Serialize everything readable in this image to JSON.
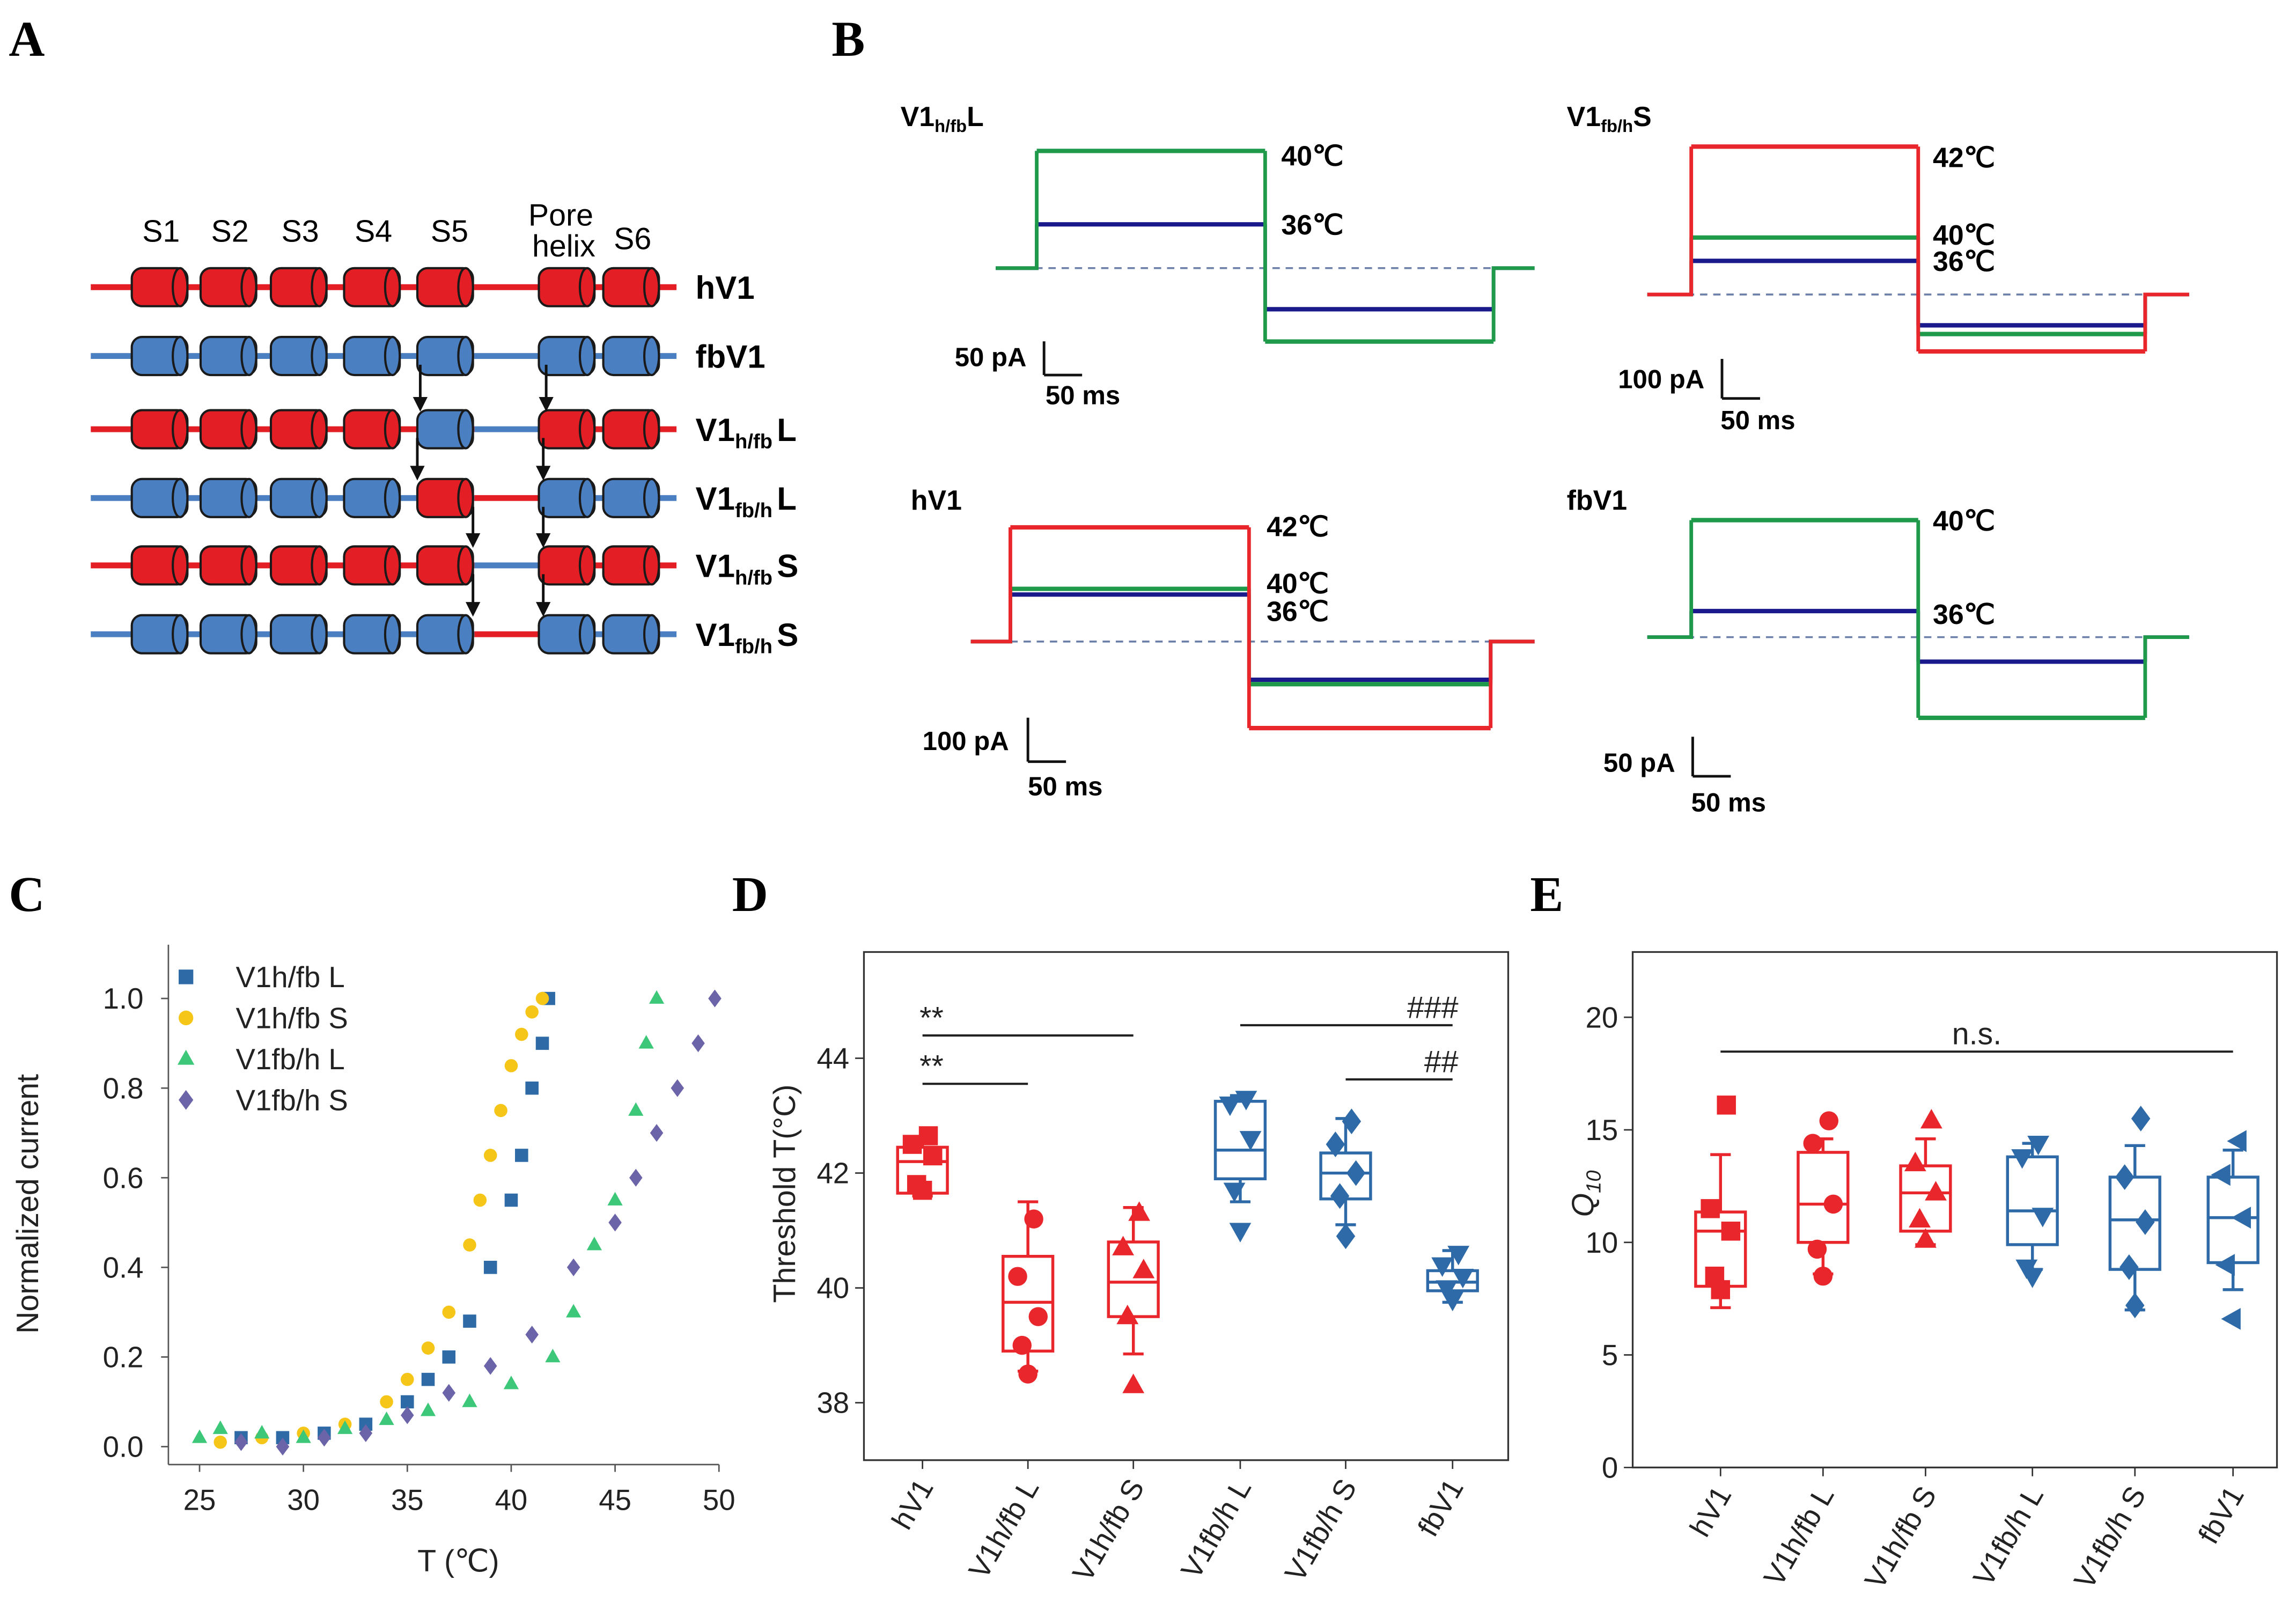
{
  "panel_labels": [
    "A",
    "B",
    "C",
    "D",
    "E"
  ],
  "diagram": {
    "segment_labels": [
      "S1",
      "S2",
      "S3",
      "S4",
      "S5",
      "S6"
    ],
    "pore_label": [
      "Pore",
      "helix"
    ],
    "rows": [
      {
        "name": "hV1",
        "line": "#e31e24",
        "linker": "#e31e24",
        "cylinders": [
          "#e31e24",
          "#e31e24",
          "#e31e24",
          "#e31e24",
          "#e31e24",
          "#e31e24",
          "#e31e24"
        ]
      },
      {
        "name": "fbV1",
        "line": "#4a7fc1",
        "linker": "#4a7fc1",
        "cylinders": [
          "#4a7fc1",
          "#4a7fc1",
          "#4a7fc1",
          "#4a7fc1",
          "#4a7fc1",
          "#4a7fc1",
          "#4a7fc1"
        ]
      },
      {
        "name": "V1",
        "sub": "h/fb",
        "suffix": "L",
        "line": "#e31e24",
        "linker": "#4a7fc1",
        "cylinders": [
          "#e31e24",
          "#e31e24",
          "#e31e24",
          "#e31e24",
          "#4a7fc1",
          "#e31e24",
          "#e31e24"
        ]
      },
      {
        "name": "V1",
        "sub": "fb/h",
        "suffix": "L",
        "line": "#4a7fc1",
        "linker": "#e31e24",
        "cylinders": [
          "#4a7fc1",
          "#4a7fc1",
          "#4a7fc1",
          "#4a7fc1",
          "#e31e24",
          "#4a7fc1",
          "#4a7fc1"
        ]
      },
      {
        "name": "V1",
        "sub": "h/fb",
        "suffix": "S",
        "line": "#e31e24",
        "linker": "#4a7fc1",
        "cylinders": [
          "#e31e24",
          "#e31e24",
          "#e31e24",
          "#e31e24",
          "#e31e24",
          "#e31e24",
          "#e31e24"
        ]
      },
      {
        "name": "V1",
        "sub": "fb/h",
        "suffix": "S",
        "line": "#4a7fc1",
        "linker": "#e31e24",
        "cylinders": [
          "#4a7fc1",
          "#4a7fc1",
          "#4a7fc1",
          "#4a7fc1",
          "#4a7fc1",
          "#4a7fc1",
          "#4a7fc1"
        ]
      }
    ]
  },
  "chart_data": [
    {
      "type": "trace",
      "title": "V1",
      "title_sub": "h/fb",
      "title_suffix": "L",
      "series": [
        {
          "name": "40℃",
          "color": "#1e9a4a",
          "values": [
            174,
            -109
          ]
        },
        {
          "name": "36℃",
          "color": "#1a1a8c",
          "values": [
            65,
            -61
          ]
        }
      ],
      "current_scale": {
        "value": 50,
        "label": "50 pA"
      },
      "time_scale": {
        "value": 50,
        "label": "50 ms"
      }
    },
    {
      "type": "trace",
      "title": "V1",
      "title_sub": "fb/h",
      "title_suffix": "S",
      "series": [
        {
          "name": "42℃",
          "color": "#e8262b",
          "values": [
            374,
            -144
          ]
        },
        {
          "name": "40℃",
          "color": "#1e9a4a",
          "values": [
            144,
            -100
          ]
        },
        {
          "name": "36℃",
          "color": "#1a1a8c",
          "values": [
            85,
            -78
          ]
        }
      ],
      "current_scale": {
        "value": 100,
        "label": "100 pA"
      },
      "time_scale": {
        "value": 50,
        "label": "50 ms"
      }
    },
    {
      "type": "trace",
      "title": "hV1",
      "series": [
        {
          "name": "42℃",
          "color": "#e8262b",
          "values": [
            260,
            -197
          ]
        },
        {
          "name": "40℃",
          "color": "#1e9a4a",
          "values": [
            120,
            -97
          ]
        },
        {
          "name": "36℃",
          "color": "#1a1a8c",
          "values": [
            107,
            -87
          ]
        }
      ],
      "current_scale": {
        "value": 100,
        "label": "100 pA"
      },
      "time_scale": {
        "value": 50,
        "label": "50 ms"
      }
    },
    {
      "type": "trace",
      "title": "fbV1",
      "series": [
        {
          "name": "40℃",
          "color": "#1e9a4a",
          "values": [
            148,
            -102
          ]
        },
        {
          "name": "36℃",
          "color": "#1a1a8c",
          "values": [
            33,
            -31
          ]
        }
      ],
      "current_scale": {
        "value": 50,
        "label": "50 pA"
      },
      "time_scale": {
        "value": 50,
        "label": "50 ms"
      }
    },
    {
      "type": "scatter",
      "xlabel": "T (℃)",
      "ylabel": "Normalized current",
      "legend": "upper left",
      "xlim": [
        23.5,
        50
      ],
      "ylim": [
        -0.04,
        1.12
      ],
      "xticks": [
        25,
        30,
        35,
        40,
        45,
        50
      ],
      "yticks": [
        {
          "value": 0,
          "label": "0.0"
        },
        {
          "value": 0.2,
          "label": "0.2"
        },
        {
          "value": 0.4,
          "label": "0.4"
        },
        {
          "value": 0.6,
          "label": "0.6"
        },
        {
          "value": 0.8,
          "label": "0.8"
        },
        {
          "value": 1,
          "label": "1.0"
        }
      ],
      "series": [
        {
          "name": "V1h/fb L",
          "color": "#2e6aa6",
          "marker": "square",
          "x": [
            27,
            29,
            31,
            33,
            35,
            36,
            37,
            38,
            39,
            40,
            40.5,
            41,
            41.5,
            41.8
          ],
          "values": [
            0.02,
            0.02,
            0.03,
            0.05,
            0.1,
            0.15,
            0.2,
            0.28,
            0.4,
            0.55,
            0.65,
            0.8,
            0.9,
            1.0
          ]
        },
        {
          "name": "V1h/fb S",
          "color": "#f5c518",
          "marker": "circle",
          "x": [
            26,
            28,
            30,
            32,
            34,
            35,
            36,
            37,
            38,
            38.5,
            39,
            39.5,
            40,
            40.5,
            41,
            41.5
          ],
          "values": [
            0.01,
            0.02,
            0.03,
            0.05,
            0.1,
            0.15,
            0.22,
            0.3,
            0.45,
            0.55,
            0.65,
            0.75,
            0.85,
            0.92,
            0.97,
            1.0
          ]
        },
        {
          "name": "V1fb/h L",
          "color": "#3cc878",
          "marker": "tri-up",
          "x": [
            25,
            26,
            28,
            30,
            32,
            34,
            36,
            38,
            40,
            42,
            43,
            44,
            45,
            46,
            46.5,
            47
          ],
          "values": [
            0.02,
            0.04,
            0.03,
            0.02,
            0.04,
            0.06,
            0.08,
            0.1,
            0.14,
            0.2,
            0.3,
            0.45,
            0.55,
            0.75,
            0.9,
            1.0
          ]
        },
        {
          "name": "V1fb/h S",
          "color": "#6b64a8",
          "marker": "diamond",
          "x": [
            27,
            29,
            31,
            33,
            35,
            37,
            39,
            41,
            43,
            45,
            46,
            47,
            48,
            49,
            49.8
          ],
          "values": [
            0.01,
            0.0,
            0.02,
            0.03,
            0.07,
            0.12,
            0.18,
            0.25,
            0.4,
            0.5,
            0.6,
            0.7,
            0.8,
            0.9,
            1.0
          ]
        }
      ]
    },
    {
      "type": "box",
      "ylabel": "Threshold T(°C)",
      "ylim": [
        37,
        45.85
      ],
      "yticks": [
        38,
        40,
        42,
        44
      ],
      "categories": [
        "hV1",
        "V1h/fb L",
        "V1h/fb S",
        "V1fb/h L",
        "V1fb/h S",
        "fbV1"
      ],
      "colors": [
        "#e8262b",
        "#e8262b",
        "#e8262b",
        "#2d6aa7",
        "#2d6aa7",
        "#2d6aa7"
      ],
      "markers": [
        "square",
        "circle",
        "tri-up",
        "tri-down",
        "diamond",
        "tri-down"
      ],
      "annotations": [
        "**",
        "**",
        "###",
        "##"
      ],
      "boxes": [
        {
          "q1": 41.65,
          "median": 42.2,
          "q3": 42.45,
          "whisker_low": 41.6,
          "whisker_high": 42.6,
          "points": [
            42.65,
            42.5,
            42.3,
            41.8,
            41.7
          ]
        },
        {
          "q1": 38.9,
          "median": 39.75,
          "q3": 40.55,
          "whisker_low": 38.55,
          "whisker_high": 41.5,
          "points": [
            41.2,
            40.2,
            39.5,
            39.0,
            38.5
          ]
        },
        {
          "q1": 39.5,
          "median": 40.1,
          "q3": 40.8,
          "whisker_low": 38.85,
          "whisker_high": 41.4,
          "points": [
            41.3,
            40.7,
            40.3,
            39.5,
            38.3
          ]
        },
        {
          "q1": 41.9,
          "median": 42.4,
          "q3": 43.25,
          "whisker_low": 41.5,
          "whisker_high": 43.35,
          "points": [
            43.3,
            43.2,
            42.6,
            41.7,
            41.0
          ]
        },
        {
          "q1": 41.55,
          "median": 42.0,
          "q3": 42.35,
          "whisker_low": 41.1,
          "whisker_high": 42.95,
          "points": [
            42.9,
            42.5,
            42.0,
            41.6,
            40.9
          ]
        },
        {
          "q1": 39.95,
          "median": 40.1,
          "q3": 40.3,
          "whisker_low": 39.75,
          "whisker_high": 40.65,
          "points": [
            40.6,
            40.4,
            40.2,
            40.0,
            39.8
          ]
        }
      ]
    },
    {
      "type": "box",
      "ylabel": "Q",
      "ylabel_sub": "10",
      "ylim": [
        0,
        22.9
      ],
      "yticks": [
        0,
        5,
        10,
        15,
        20
      ],
      "categories": [
        "hV1",
        "V1h/fb L",
        "V1h/fb S",
        "V1fb/h L",
        "V1fb/h S",
        "fbV1"
      ],
      "colors": [
        "#e8262b",
        "#e8262b",
        "#e8262b",
        "#2d6aa7",
        "#2d6aa7",
        "#2d6aa7"
      ],
      "markers": [
        "square",
        "circle",
        "tri-up",
        "tri-down",
        "diamond",
        "tri-left"
      ],
      "annotations": [
        "n.s."
      ],
      "boxes": [
        {
          "q1": 8.05,
          "median": 10.5,
          "q3": 11.35,
          "whisker_low": 7.1,
          "whisker_high": 13.9,
          "points": [
            16.1,
            11.5,
            10.5,
            8.5,
            7.9
          ]
        },
        {
          "q1": 10.0,
          "median": 11.7,
          "q3": 14.0,
          "whisker_low": 8.6,
          "whisker_high": 14.6,
          "points": [
            15.4,
            14.4,
            11.7,
            9.7,
            8.5
          ]
        },
        {
          "q1": 10.5,
          "median": 12.2,
          "q3": 13.4,
          "whisker_low": 9.9,
          "whisker_high": 14.6,
          "points": [
            15.4,
            13.5,
            12.2,
            11.0,
            10.1
          ]
        },
        {
          "q1": 9.9,
          "median": 11.4,
          "q3": 13.8,
          "whisker_low": 8.8,
          "whisker_high": 14.4,
          "points": [
            14.4,
            13.8,
            11.2,
            8.9,
            8.5
          ]
        },
        {
          "q1": 8.8,
          "median": 11.0,
          "q3": 12.9,
          "whisker_low": 7.0,
          "whisker_high": 14.3,
          "points": [
            15.5,
            12.9,
            10.9,
            8.9,
            7.2
          ]
        },
        {
          "q1": 9.1,
          "median": 11.1,
          "q3": 12.9,
          "whisker_low": 7.9,
          "whisker_high": 14.1,
          "points": [
            14.5,
            13.0,
            11.1,
            9.0,
            6.6
          ]
        }
      ]
    }
  ]
}
